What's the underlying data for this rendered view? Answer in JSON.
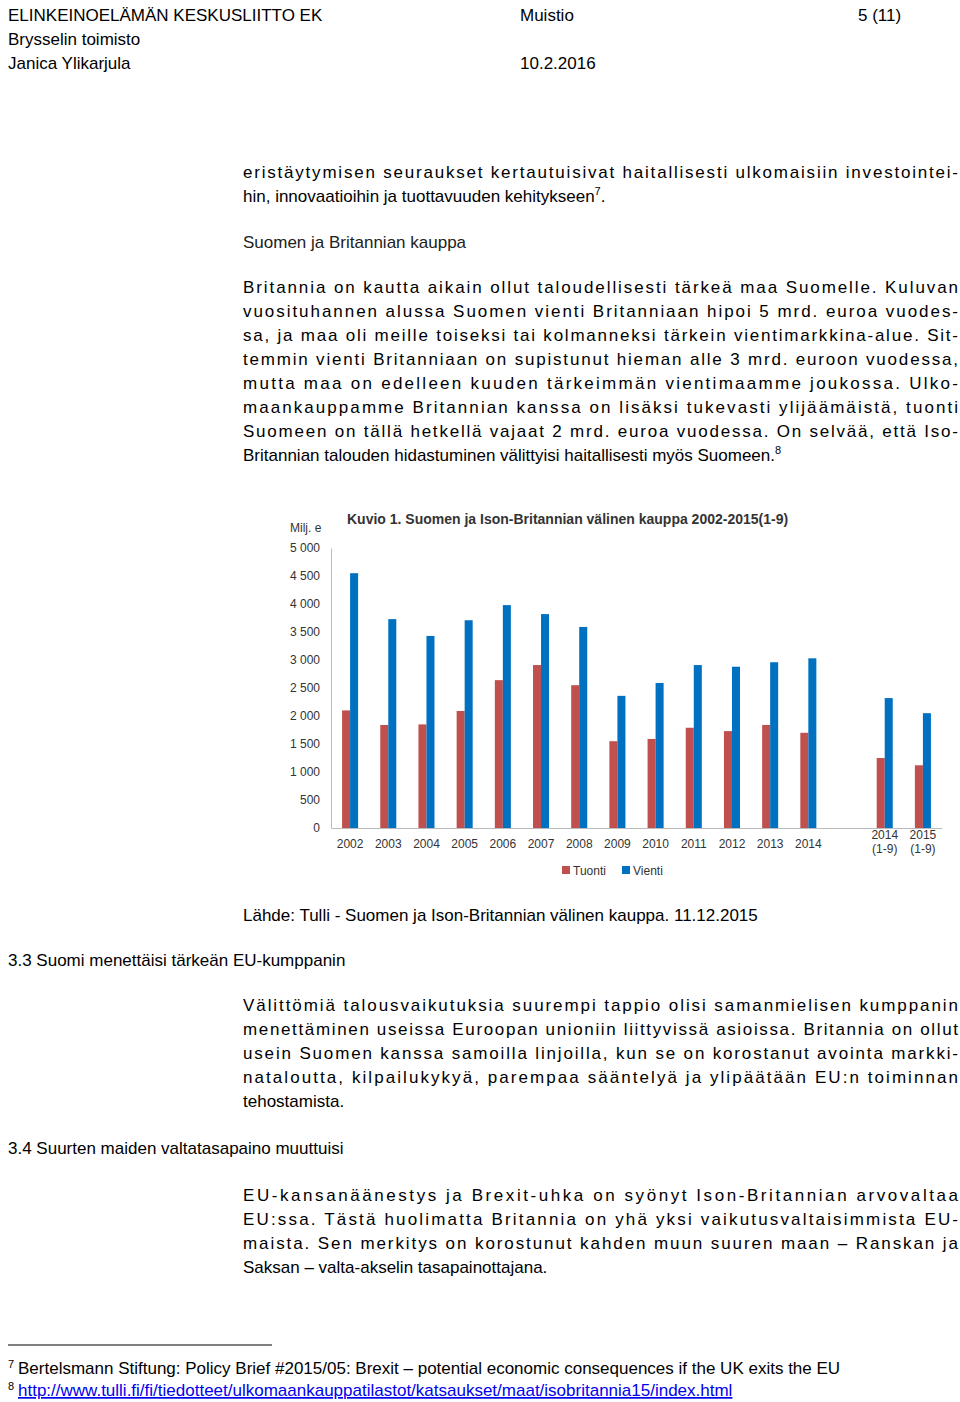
{
  "header": {
    "org": "ELINKEINOELÄMÄN KESKUSLIITTO EK",
    "doc_type": "Muistio",
    "page": "5 (11)",
    "office": "Brysselin toimisto",
    "author": "Janica Ylikarjula",
    "date": "10.2.2016"
  },
  "intro": {
    "lines": [
      "eristäytymisen seuraukset kertautuisivat haitallisesti ulkomaisiin investointei-",
      {
        "text": "hin, innovaatioihin ja tuottavuuden kehitykseen",
        "ref": "7",
        "tail": "."
      }
    ]
  },
  "section_trade": {
    "title": "Suomen ja Britannian kauppa",
    "lines": [
      "Britannia on kautta aikain ollut taloudellisesti tärkeä maa Suomelle. Kuluvan",
      "vuosituhannen alussa Suomen vienti Britanniaan hipoi 5 mrd. euroa vuodes-",
      "sa, ja maa oli meille toiseksi tai kolmanneksi tärkein vientimarkkina-alue. Sit-",
      "temmin vienti Britanniaan on supistunut hieman alle 3 mrd. euroon vuodessa,",
      "mutta maa on edelleen kuuden tärkeimmän vientimaamme joukossa. Ulko-",
      "maankauppamme Britannian kanssa on lisäksi tukevasti ylijäämäistä, tuonti",
      "Suomeen on tällä hetkellä vajaat 2 mrd. euroa vuodessa. On selvää, että Iso-",
      {
        "text": "Britannian talouden hidastuminen välittyisi haitallisesti myös Suomeen.",
        "ref": "8",
        "tail": ""
      }
    ]
  },
  "figure_source": "Lähde: Tulli - Suomen ja Ison-Britannian välinen kauppa. 11.12.2015",
  "sections": [
    {
      "title": "3.3 Suomi menettäisi tärkeän EU-kumppanin",
      "lines": [
        "Välittömiä talousvaikutuksia suurempi tappio olisi samanmielisen kumppanin",
        "menettäminen useissa Euroopan unioniin liittyvissä asioissa. Britannia on ollut",
        "usein Suomen kanssa samoilla linjoilla, kun se on korostanut avointa markki-",
        "nataloutta, kilpailukykyä, parempaa sääntelyä ja ylipäätään EU:n toiminnan",
        "tehostamista."
      ]
    },
    {
      "title": "3.4 Suurten maiden valtatasapaino muuttuisi",
      "lines": [
        "EU-kansanäänestys ja Brexit-uhka on syönyt Ison-Britannian arvovaltaa",
        "EU:ssa. Tästä huolimatta Britannia on yhä yksi vaikutusvaltaisimmista EU-",
        "maista. Sen merkitys on korostunut kahden muun suuren maan – Ranskan ja",
        "Saksan – valta-akselin tasapainottajana."
      ]
    }
  ],
  "footnotes": [
    {
      "number": "7",
      "text": "Bertelsmann Stiftung: Policy Brief #2015/05: Brexit – potential economic consequences if the UK exits the EU"
    },
    {
      "number": "8",
      "text": "http://www.tulli.fi/fi/tiedotteet/ulkomaankauppatilastot/katsaukset/maat/isobritannia15/index.html"
    }
  ],
  "chart_data": {
    "type": "bar",
    "title": "Kuvio 1. Suomen ja Ison-Britannian välinen kauppa 2002-2015(1-9)",
    "y_label": "Milj. e",
    "categories": [
      "2002",
      "2003",
      "2004",
      "2005",
      "2006",
      "2007",
      "2008",
      "2009",
      "2010",
      "2011",
      "2012",
      "2013",
      "2014",
      null,
      "2014 (1-9)",
      "2015 (1-9)"
    ],
    "series": [
      {
        "name": "Tuonti",
        "color": "#c0504d",
        "values": [
          2100,
          1840,
          1850,
          2090,
          2640,
          2910,
          2550,
          1550,
          1590,
          1790,
          1730,
          1840,
          1700,
          null,
          1250,
          1120
        ]
      },
      {
        "name": "Vienti",
        "color": "#0070c0",
        "values": [
          4550,
          3730,
          3430,
          3710,
          3980,
          3820,
          3590,
          2360,
          2590,
          2910,
          2880,
          2960,
          3030,
          null,
          2320,
          2050
        ]
      }
    ],
    "ylim": [
      0,
      5000
    ],
    "yticks": [
      0,
      500,
      {
        "value": 1000,
        "label": "1 000"
      },
      {
        "value": 1500,
        "label": "1 500"
      },
      {
        "value": 2000,
        "label": "2 000"
      },
      {
        "value": 2500,
        "label": "2 500"
      },
      {
        "value": 3000,
        "label": "3 000"
      },
      {
        "value": 3500,
        "label": "3 500"
      },
      {
        "value": 4000,
        "label": "4 000"
      },
      {
        "value": 4500,
        "label": "4 500"
      },
      {
        "value": 5000,
        "label": "5 000"
      }
    ],
    "grid": false,
    "legend": "bottom"
  }
}
